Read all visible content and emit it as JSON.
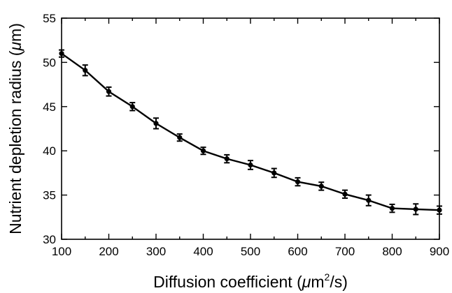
{
  "chart_data": {
    "type": "line",
    "title": "",
    "xlabel_parts": [
      "Diffusion coefficient (",
      "μ",
      "m",
      "2",
      "/s)"
    ],
    "ylabel_parts": [
      "Nutrient depletion radius (",
      "μ",
      "m)"
    ],
    "xlim": [
      100,
      900
    ],
    "ylim": [
      30,
      55
    ],
    "xticks": [
      100,
      200,
      300,
      400,
      500,
      600,
      700,
      800,
      900
    ],
    "yticks": [
      30,
      35,
      40,
      45,
      50,
      55
    ],
    "minor_xticks_step": 50,
    "grid": false,
    "legend": false,
    "series": [
      {
        "color": "#000000",
        "marker": "circle",
        "points": [
          {
            "x": 100,
            "y": 51.0,
            "err": 0.4
          },
          {
            "x": 150,
            "y": 49.1,
            "err": 0.6
          },
          {
            "x": 200,
            "y": 46.7,
            "err": 0.5
          },
          {
            "x": 250,
            "y": 45.0,
            "err": 0.45
          },
          {
            "x": 300,
            "y": 43.1,
            "err": 0.6
          },
          {
            "x": 350,
            "y": 41.5,
            "err": 0.4
          },
          {
            "x": 400,
            "y": 40.0,
            "err": 0.4
          },
          {
            "x": 450,
            "y": 39.1,
            "err": 0.45
          },
          {
            "x": 500,
            "y": 38.4,
            "err": 0.5
          },
          {
            "x": 550,
            "y": 37.5,
            "err": 0.5
          },
          {
            "x": 600,
            "y": 36.5,
            "err": 0.45
          },
          {
            "x": 650,
            "y": 36.0,
            "err": 0.45
          },
          {
            "x": 700,
            "y": 35.1,
            "err": 0.45
          },
          {
            "x": 750,
            "y": 34.4,
            "err": 0.6
          },
          {
            "x": 800,
            "y": 33.5,
            "err": 0.45
          },
          {
            "x": 850,
            "y": 33.4,
            "err": 0.6
          },
          {
            "x": 900,
            "y": 33.3,
            "err": 0.45
          }
        ]
      }
    ]
  }
}
